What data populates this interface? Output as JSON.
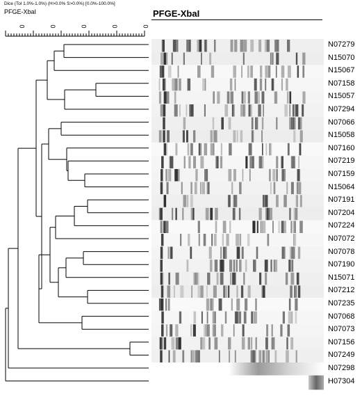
{
  "header": {
    "dice_line": "Dice (Tol 1.0%-1.0%) (H>0.0% S>0.0%) [0.0%-100.0%]",
    "experiment": "PFGE-XbaI"
  },
  "panel_title": "PFGE-XbaI",
  "scale": {
    "ticks": [
      "0",
      "0",
      "0",
      "0",
      "0"
    ],
    "range": [
      50,
      100
    ]
  },
  "strains": [
    "N07279",
    "N15070",
    "N15067",
    "N07158",
    "N15057",
    "N07294",
    "N07066",
    "N15058",
    "N07160",
    "N07219",
    "N07159",
    "N15064",
    "N07191",
    "N07204",
    "N07224",
    "N07072",
    "N07078",
    "N07190",
    "N15071",
    "N07212",
    "N07235",
    "N07068",
    "N07073",
    "N07156",
    "N07249",
    "N07298",
    "H07304"
  ],
  "dendrogram": [
    {
      "a": 0,
      "b": 1,
      "sim": 90.5
    },
    {
      "a": 3,
      "b": 4,
      "sim": 86
    },
    {
      "a": 6,
      "b": 7,
      "sim": 89.5
    },
    {
      "a": 10,
      "b": 11,
      "sim": 88.5
    },
    {
      "a": 12,
      "b": 13,
      "sim": 86.5
    },
    {
      "a": 16,
      "b": 17,
      "sim": 91.5
    },
    {
      "a": 19,
      "b": 20,
      "sim": 86.5
    },
    {
      "a": 21,
      "b": 22,
      "sim": 88.5
    },
    {
      "a": 23,
      "b": 24,
      "sim": 80
    },
    {
      "c": [
        0,
        1
      ],
      "b": 2,
      "sim": 91
    },
    {
      "c": [
        3,
        4
      ],
      "b": 5,
      "sim": 91
    },
    {
      "c": [
        9,
        10,
        11
      ],
      "b": 9,
      "sim": 90
    },
    {
      "c": [
        12,
        13
      ],
      "b": 14,
      "sim": 92.5
    },
    {
      "c": [
        16,
        17
      ],
      "b": 18,
      "sim": 93.5
    }
  ]
}
